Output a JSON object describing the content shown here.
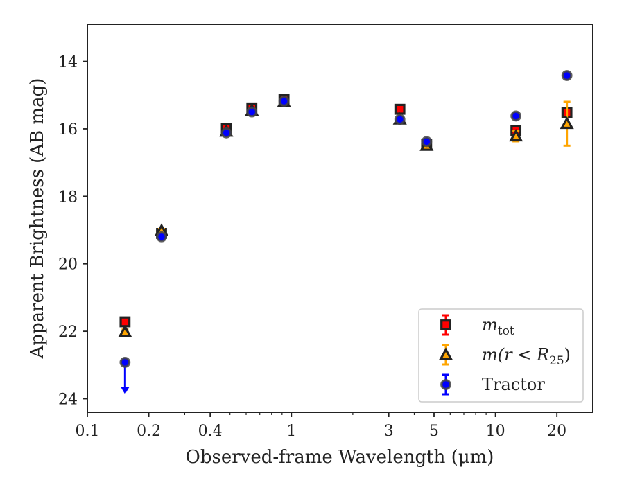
{
  "chart_data": {
    "type": "scatter",
    "xlabel": "Observed-frame Wavelength (μm)",
    "ylabel": "Apparent Brightness (AB mag)",
    "xscale": "log",
    "xlim": [
      0.1,
      30
    ],
    "ylim": [
      24.4,
      12.9
    ],
    "y_inverted": true,
    "xticks": [
      {
        "value": 0.1,
        "label": "0.1"
      },
      {
        "value": 0.2,
        "label": "0.2"
      },
      {
        "value": 0.4,
        "label": "0.4"
      },
      {
        "value": 1,
        "label": "1"
      },
      {
        "value": 3,
        "label": "3"
      },
      {
        "value": 5,
        "label": "5"
      },
      {
        "value": 10,
        "label": "10"
      },
      {
        "value": 20,
        "label": "20"
      }
    ],
    "yticks": [
      {
        "value": 14,
        "label": "14"
      },
      {
        "value": 16,
        "label": "16"
      },
      {
        "value": 18,
        "label": "18"
      },
      {
        "value": 20,
        "label": "20"
      },
      {
        "value": 22,
        "label": "22"
      },
      {
        "value": 24,
        "label": "24"
      }
    ],
    "grid": false,
    "legend_position": "lower-right",
    "series": [
      {
        "name": "m_tot",
        "legend_main": "m",
        "legend_sub": "tot",
        "marker": "square",
        "face_color": "#ff0000",
        "edge_color": "#222222",
        "errorbar_color": "#ff0000",
        "points": [
          {
            "x": 0.153,
            "y": 21.72,
            "err": 0.08
          },
          {
            "x": 0.231,
            "y": 19.1,
            "err": 0.05
          },
          {
            "x": 0.48,
            "y": 15.98,
            "err": 0.05
          },
          {
            "x": 0.64,
            "y": 15.38,
            "err": 0.05
          },
          {
            "x": 0.92,
            "y": 15.12,
            "err": 0.05
          },
          {
            "x": 3.4,
            "y": 15.42,
            "err": 0.05
          },
          {
            "x": 4.6,
            "y": 16.45,
            "err": 0.05
          },
          {
            "x": 12.6,
            "y": 16.05,
            "err": 0.07
          },
          {
            "x": 22.4,
            "y": 15.52,
            "err": 0.1
          }
        ]
      },
      {
        "name": "m(r < R_25)",
        "legend_main": "m(r < R",
        "legend_sub": "25",
        "legend_tail": ")",
        "marker": "triangle",
        "face_color": "#ffa500",
        "edge_color": "#222222",
        "errorbar_color": "#ffa500",
        "points": [
          {
            "x": 0.153,
            "y": 22.02,
            "err": 0.07
          },
          {
            "x": 0.231,
            "y": 19.02,
            "err": 0.05
          },
          {
            "x": 0.48,
            "y": 16.08,
            "err": 0.05
          },
          {
            "x": 0.64,
            "y": 15.46,
            "err": 0.05
          },
          {
            "x": 0.92,
            "y": 15.2,
            "err": 0.05
          },
          {
            "x": 3.4,
            "y": 15.72,
            "err": 0.05
          },
          {
            "x": 4.6,
            "y": 16.5,
            "err": 0.06
          },
          {
            "x": 12.6,
            "y": 16.22,
            "err": 0.15
          },
          {
            "x": 22.4,
            "y": 15.85,
            "err": 0.65
          }
        ]
      },
      {
        "name": "Tractor",
        "marker": "circle",
        "face_color": "#0000ff",
        "edge_color": "#444444",
        "errorbar_color": "#0000ff",
        "points": [
          {
            "x": 0.153,
            "y": 22.92,
            "upper_limit": true
          },
          {
            "x": 0.231,
            "y": 19.2,
            "err": 0.05
          },
          {
            "x": 0.48,
            "y": 16.12,
            "err": 0.05
          },
          {
            "x": 0.64,
            "y": 15.5,
            "err": 0.05
          },
          {
            "x": 0.92,
            "y": 15.18,
            "err": 0.05
          },
          {
            "x": 3.4,
            "y": 15.72,
            "err": 0.05
          },
          {
            "x": 4.6,
            "y": 16.38,
            "err": 0.05
          },
          {
            "x": 12.6,
            "y": 15.62,
            "err": 0.05
          },
          {
            "x": 22.4,
            "y": 14.42,
            "err": 0.05
          }
        ]
      }
    ]
  },
  "legend": {
    "tractor_label": "Tractor"
  }
}
